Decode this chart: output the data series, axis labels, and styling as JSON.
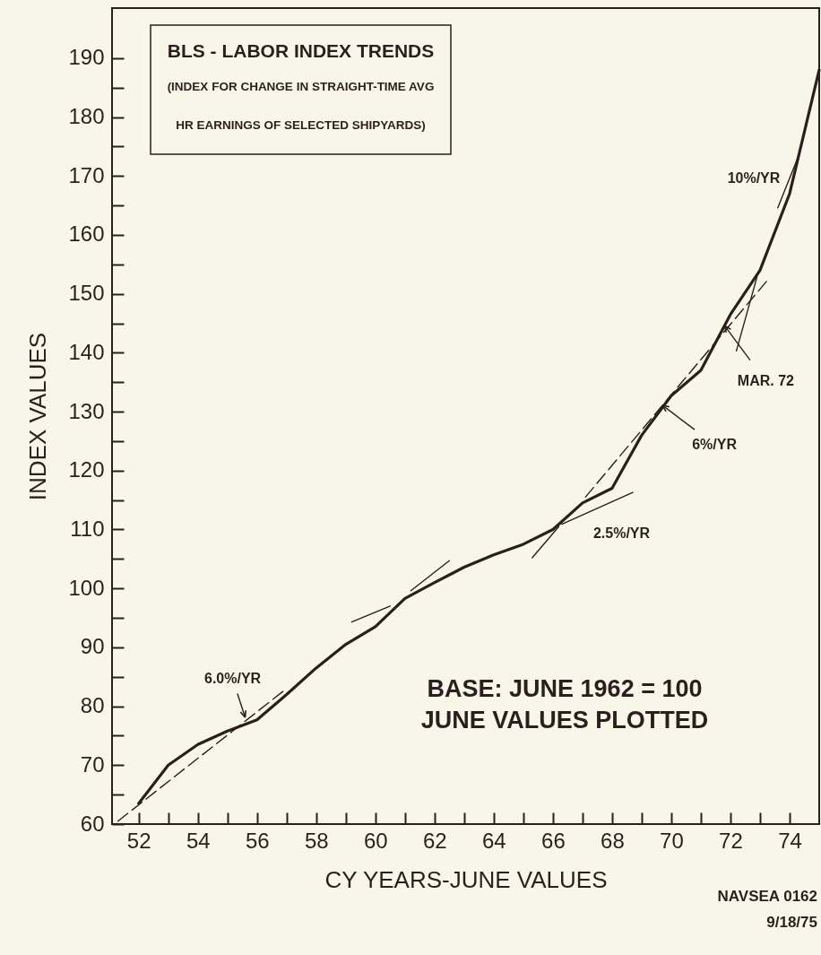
{
  "chart_data": {
    "type": "line",
    "title": "BLS - LABOR INDEX TRENDS",
    "subtitle": "(INDEX FOR CHANGE IN STRAIGHT-TIME AVG\nHR EARNINGS OF SELECTED SHIPYARDS)",
    "xlabel": "CY YEARS-JUNE VALUES",
    "ylabel": "INDEX VALUES",
    "x": [
      52,
      53,
      54,
      55,
      56,
      57,
      58,
      59,
      60,
      61,
      62,
      63,
      64,
      65,
      66,
      67,
      68,
      69,
      70,
      71,
      72,
      73,
      74,
      75
    ],
    "series": [
      {
        "color": "#2b1f1d",
        "line_style": "solid",
        "values": [
          63.5,
          70,
          73.5,
          75.8,
          77.7,
          82,
          86.5,
          90.5,
          93.5,
          98.3,
          101,
          103.6,
          105.7,
          107.5,
          110,
          114.5,
          117,
          126,
          132.7,
          137,
          146.5,
          154,
          167,
          188
        ]
      },
      {
        "color": "#2b1f1d",
        "line_style": "dashed",
        "x": [
          51.3,
          57.0
        ],
        "values": [
          60.5,
          83.0
        ]
      },
      {
        "color": "#2b1f1d",
        "line_style": "solid",
        "x": [
          59.2,
          60.5
        ],
        "values": [
          94.3,
          97.0
        ]
      },
      {
        "color": "#2b1f1d",
        "line_style": "solid",
        "x": [
          61.2,
          62.5
        ],
        "values": [
          99.6,
          104.7
        ]
      },
      {
        "color": "#2b1f1d",
        "line_style": "solid",
        "x": [
          65.3,
          66.2
        ],
        "values": [
          105.2,
          110.5
        ]
      },
      {
        "color": "#2b1f1d",
        "line_style": "solid",
        "x": [
          66.3,
          68.7
        ],
        "values": [
          110.9,
          116.3
        ]
      },
      {
        "color": "#2b1f1d",
        "line_style": "dashed",
        "x": [
          67.1,
          73.3
        ],
        "values": [
          115.5,
          152.6
        ]
      },
      {
        "color": "#2b1f1d",
        "line_style": "solid",
        "x": [
          72.2,
          72.9
        ],
        "values": [
          140.3,
          152.9
        ]
      },
      {
        "color": "#2b1f1d",
        "line_style": "solid",
        "x": [
          73.6,
          74.3
        ],
        "values": [
          164.6,
          173.4
        ]
      }
    ],
    "xlim": [
      51.1,
      75
    ],
    "ylim": [
      60,
      198.5
    ],
    "xticks": [
      52,
      {
        "value": 53,
        "label": null
      },
      54,
      {
        "value": 55,
        "label": null
      },
      56,
      {
        "value": 57,
        "label": null
      },
      58,
      {
        "value": 59,
        "label": null
      },
      60,
      {
        "value": 61,
        "label": null
      },
      62,
      {
        "value": 63,
        "label": null
      },
      64,
      {
        "value": 65,
        "label": null
      },
      66,
      {
        "value": 67,
        "label": null
      },
      68,
      {
        "value": 69,
        "label": null
      },
      70,
      {
        "value": 71,
        "label": null
      },
      72,
      {
        "value": 73,
        "label": null
      },
      74
    ],
    "yticks": [
      60,
      {
        "value": 65,
        "label": null
      },
      70,
      {
        "value": 75,
        "label": null
      },
      80,
      {
        "value": 85,
        "label": null
      },
      90,
      {
        "value": 95,
        "label": null
      },
      100,
      {
        "value": 105,
        "label": null
      },
      110,
      {
        "value": 115,
        "label": null
      },
      120,
      {
        "value": 125,
        "label": null
      },
      130,
      {
        "value": 135,
        "label": null
      },
      140,
      {
        "value": 145,
        "label": null
      },
      150,
      {
        "value": 155,
        "label": null
      },
      160,
      {
        "value": 165,
        "label": null
      },
      170,
      {
        "value": 175,
        "label": null
      },
      180,
      {
        "value": 185,
        "label": null
      },
      190
    ],
    "annotations": [
      {
        "text": "6.0%/YR",
        "x": 55.6,
        "y": 78.1
      },
      {
        "text": "2.5%/YR",
        "x": 68.2,
        "y": 114.8
      },
      {
        "text": "6%/YR",
        "x": 69.7,
        "y": 131.1
      },
      {
        "text": "MAR. 72",
        "x": 71.8,
        "y": 144.6
      },
      {
        "text": "10%/YR",
        "x": 74.0,
        "y": 169.6
      },
      "BASE: JUNE 1962 = 100",
      "JUNE VALUES PLOTTED",
      "NAVSEA 0162",
      "9/18/75"
    ]
  }
}
